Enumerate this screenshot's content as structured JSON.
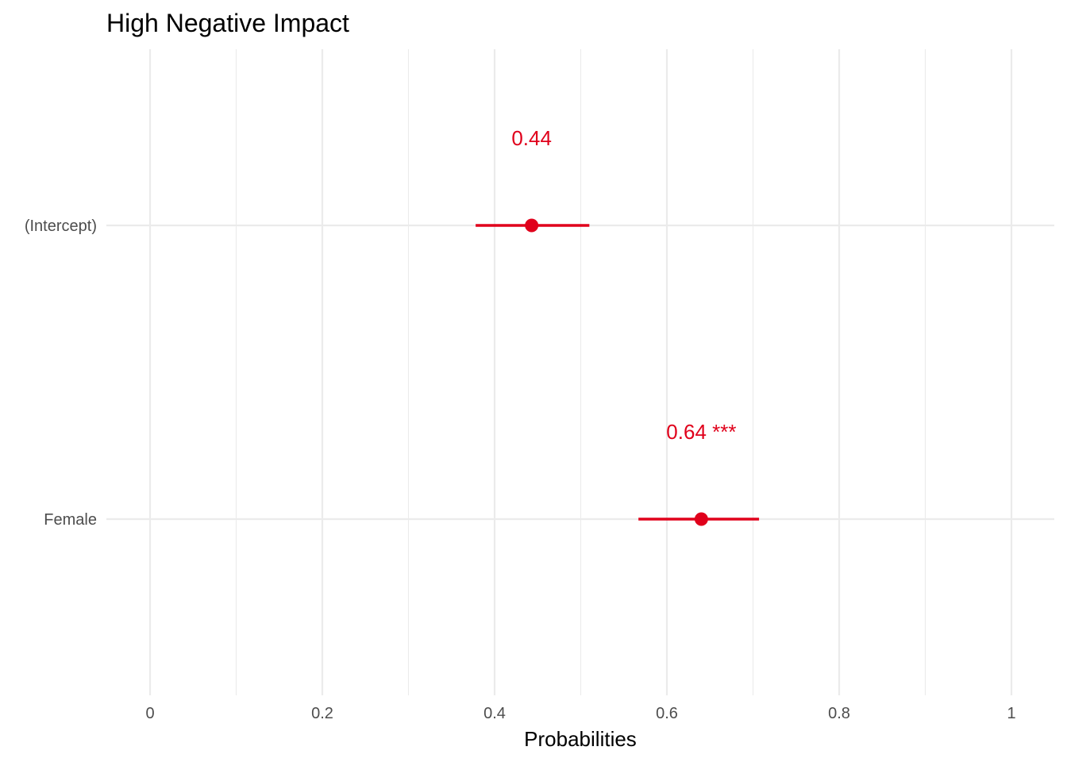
{
  "chart_data": {
    "type": "scatter",
    "title": "High Negative Impact",
    "xlabel": "Probabilities",
    "ylabel": "",
    "xlim": [
      0,
      1
    ],
    "x_ticks": [
      0,
      0.2,
      0.4,
      0.6,
      0.8,
      1
    ],
    "x_tick_labels": [
      "0",
      "0.2",
      "0.4",
      "0.6",
      "0.8",
      "1"
    ],
    "categories": [
      "(Intercept)",
      "Female"
    ],
    "grid": true,
    "legend": "none",
    "series": [
      {
        "color": "#e0001b",
        "points": [
          {
            "category": "(Intercept)",
            "estimate": 0.443,
            "ci_low": 0.378,
            "ci_high": 0.51,
            "label": "0.44"
          },
          {
            "category": "Female",
            "estimate": 0.64,
            "ci_low": 0.567,
            "ci_high": 0.707,
            "label": "0.64 ***"
          }
        ]
      }
    ]
  }
}
